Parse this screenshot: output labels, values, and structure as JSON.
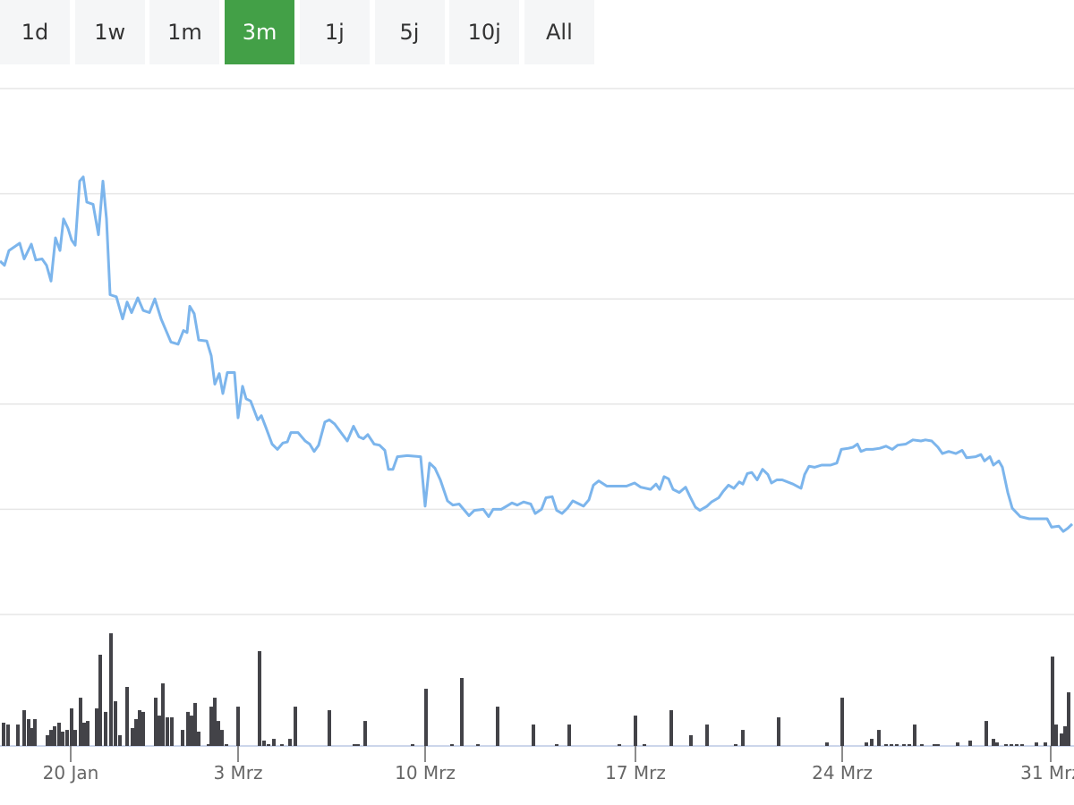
{
  "range_buttons": {
    "labels": [
      "1d",
      "1w",
      "1m",
      "3m",
      "1j",
      "5j",
      "10j",
      "All"
    ],
    "selected": 3
  },
  "chart_data": [
    {
      "type": "line",
      "color": "#7cb5ec",
      "x": [
        0,
        0.5,
        1,
        1.7,
        2.2,
        2.7,
        3.5,
        4,
        4.7,
        5.2,
        5.7,
        6.2,
        6.7,
        7.1,
        7.6,
        8,
        8.4,
        8.9,
        9.3,
        9.7,
        10.4,
        11,
        11.5,
        11.9,
        12.3,
        13,
        13.7,
        14.2,
        14.7,
        15.4,
        16,
        16.7,
        17.3,
        18,
        18.5,
        19.1,
        19.9,
        20.5,
        20.9,
        21.2,
        21.7,
        22.2,
        23.1,
        23.6,
        24,
        24.5,
        24.9,
        25.4,
        26.2,
        26.6,
        27.1,
        27.5,
        28,
        28.8,
        29.2,
        29.7,
        30.4,
        31,
        31.6,
        32.1,
        32.5,
        33.3,
        34.1,
        34.6,
        35.1,
        35.6,
        36.3,
        36.8,
        37.4,
        38.1,
        38.8,
        39.5,
        40.1,
        40.6,
        41.1,
        41.8,
        42.4,
        43,
        43.4,
        43.9,
        44.4,
        45.5,
        47,
        47.5,
        48,
        48.6,
        49.2,
        50,
        50.6,
        51.3,
        51.8,
        52.4,
        53,
        54,
        54.6,
        55.1,
        56,
        56.6,
        57.2,
        57.8,
        58.5,
        59.3,
        59.8,
        60.5,
        61,
        61.7,
        62.2,
        62.8,
        63.4,
        64,
        65.2,
        65.8,
        66.3,
        66.9,
        67.8,
        70,
        70.9,
        71.6,
        72.7,
        73.3,
        73.7,
        74.2,
        74.7,
        75.2,
        75.9,
        76.6,
        77.1,
        77.7,
        78.2,
        79,
        79.5,
        80.3,
        80.8,
        81.4,
        82,
        82.6,
        83,
        83.5,
        84,
        84.6,
        85.2,
        85.8,
        86.2,
        86.8,
        87.4,
        88.6,
        89.5,
        89.9,
        90.4,
        91,
        91.8,
        92.8,
        93.5,
        94,
        94.8,
        95.3,
        95.8,
        96.2,
        96.8,
        97.5,
        98.3,
        99,
        99.7,
        100.3,
        101.2,
        102,
        102.9,
        103.4,
        104.1,
        104.8,
        105.3,
        106,
        106.8,
        107.5,
        108,
        109,
        109.6,
        110,
        110.6,
        111,
        111.6,
        112,
        112.6,
        113.1,
        114,
        115,
        117,
        117.5,
        118.3,
        118.8,
        119.3,
        119.8
      ],
      "values": [
        33.6,
        33.2,
        34.6,
        35,
        35.3,
        33.8,
        35.2,
        33.7,
        33.8,
        33.2,
        31.7,
        35.8,
        34.6,
        37.6,
        36.7,
        35.6,
        35.1,
        41.2,
        41.6,
        39.2,
        39,
        36.1,
        41.2,
        37.6,
        30.4,
        30.2,
        28.1,
        29.7,
        28.7,
        30.1,
        28.9,
        28.7,
        30,
        28.1,
        27.1,
        25.9,
        25.7,
        27,
        26.8,
        29.3,
        28.6,
        26.1,
        26,
        24.6,
        21.9,
        22.9,
        21,
        23,
        23,
        18.7,
        21.7,
        20.5,
        20.3,
        18.5,
        18.9,
        17.8,
        16.2,
        15.7,
        16.3,
        16.4,
        17.3,
        17.3,
        16.5,
        16.2,
        15.5,
        16.1,
        18.3,
        18.5,
        18.1,
        17.3,
        16.5,
        17.9,
        16.9,
        16.7,
        17.1,
        16.2,
        16.1,
        15.6,
        13.8,
        13.8,
        15,
        15.1,
        15,
        10.3,
        14.4,
        13.9,
        12.8,
        10.8,
        10.4,
        10.5,
        10,
        9.4,
        9.9,
        10,
        9.3,
        10,
        10,
        10.3,
        10.6,
        10.4,
        10.7,
        10.5,
        9.6,
        10,
        11.1,
        11.2,
        9.9,
        9.6,
        10.1,
        10.8,
        10.3,
        10.9,
        12.3,
        12.7,
        12.2,
        12.2,
        12.5,
        12.1,
        11.9,
        12.4,
        11.9,
        13.1,
        12.9,
        11.9,
        11.6,
        12.1,
        11.2,
        10.2,
        9.9,
        10.3,
        10.7,
        11.1,
        11.7,
        12.3,
        12,
        12.6,
        12.4,
        13.4,
        13.5,
        12.8,
        13.8,
        13.3,
        12.5,
        12.8,
        12.8,
        12.4,
        12,
        13.3,
        14.1,
        14,
        14.2,
        14.2,
        14.4,
        15.7,
        15.8,
        15.9,
        16.2,
        15.5,
        15.7,
        15.7,
        15.8,
        16,
        15.7,
        16.1,
        16.2,
        16.6,
        16.5,
        16.6,
        16.5,
        15.9,
        15.3,
        15.5,
        15.3,
        15.6,
        14.9,
        15,
        15.2,
        14.6,
        15,
        14.2,
        14.6,
        14,
        11.6,
        10.1,
        9.3,
        9.1,
        9.1,
        8.3,
        8.4,
        7.9,
        8.2,
        8.6
      ],
      "xlim": [
        0,
        120
      ],
      "ylim": [
        0,
        50
      ],
      "yticks": [
        0,
        10,
        20,
        30,
        40,
        50
      ],
      "grid": true,
      "xticks": [
        {
          "value": 7.9,
          "label": "20 Jan"
        },
        {
          "value": 26.6,
          "label": "3 Mrz"
        },
        {
          "value": 47.5,
          "label": "10 Mrz"
        },
        {
          "value": 71,
          "label": "17 Mrz"
        },
        {
          "value": 94.1,
          "label": "24 Mrz"
        },
        {
          "value": 117.4,
          "label": "31 Mrz"
        }
      ]
    },
    {
      "type": "bar",
      "color": "#434348",
      "xlim": [
        0,
        120
      ],
      "ylim": [
        0,
        100
      ],
      "x": [
        0.4,
        0.9,
        2,
        2.7,
        3.2,
        3.6,
        3.9,
        5.3,
        5.7,
        6.1,
        6.6,
        7,
        7.5,
        8,
        8.4,
        9,
        9.4,
        9.8,
        10.8,
        11.2,
        11.8,
        12.4,
        12.9,
        13.4,
        14.2,
        14.8,
        15.2,
        15.6,
        16,
        17.4,
        17.8,
        18.2,
        18.7,
        19.2,
        20.4,
        21,
        21.4,
        21.8,
        22.2,
        23.3,
        23.6,
        24,
        24.4,
        24.8,
        25.3,
        26.6,
        29,
        29.5,
        30,
        30.6,
        31.5,
        32.4,
        33,
        36.8,
        39.6,
        40,
        40.8,
        46.1,
        47.6,
        50.5,
        51.6,
        53.4,
        55.6,
        59.6,
        62.2,
        63.6,
        69.2,
        71,
        72,
        75,
        77.2,
        79,
        82.2,
        83,
        87,
        92.4,
        94.1,
        96.8,
        97.4,
        98.2,
        99,
        99.6,
        100.2,
        101,
        101.6,
        102.2,
        103,
        104.4,
        104.8,
        107,
        108.4,
        110.2,
        111,
        111.4,
        112.4,
        113,
        113.6,
        114.2,
        115.8,
        116.8,
        117.6,
        118,
        118.6,
        119,
        119.4
      ],
      "values": [
        17.7,
        16.3,
        16.3,
        27.2,
        20.4,
        13.6,
        20.4,
        8.2,
        12.2,
        15,
        17.7,
        10.9,
        12.2,
        28.6,
        12.2,
        36.7,
        17.7,
        19,
        28.6,
        69.4,
        25.9,
        85.7,
        34,
        8.2,
        44.9,
        13.6,
        20.4,
        27.2,
        25.9,
        36.7,
        23.1,
        47.6,
        21.8,
        21.8,
        12.2,
        25.9,
        23.1,
        32.7,
        10.9,
        1.4,
        29.9,
        36.7,
        19,
        12.2,
        1.4,
        29.9,
        72.1,
        4.1,
        1.4,
        5.4,
        1.4,
        5.4,
        29.9,
        27.2,
        1.4,
        1.4,
        19,
        1.4,
        43.5,
        1.4,
        51.7,
        1.4,
        29.9,
        16.3,
        1.4,
        16.3,
        1.4,
        23.1,
        1.4,
        27.2,
        8.2,
        16.3,
        1.4,
        12.2,
        21.8,
        2.7,
        36.7,
        2.7,
        5.4,
        12.2,
        1.4,
        1.4,
        1.4,
        1.4,
        1.4,
        16.3,
        1.4,
        1.4,
        1.4,
        2.7,
        4.1,
        19,
        5.4,
        2.7,
        1.4,
        1.4,
        1.4,
        1.4,
        2.7,
        2.7,
        68,
        16.3,
        9.5,
        15,
        40.8
      ]
    }
  ]
}
